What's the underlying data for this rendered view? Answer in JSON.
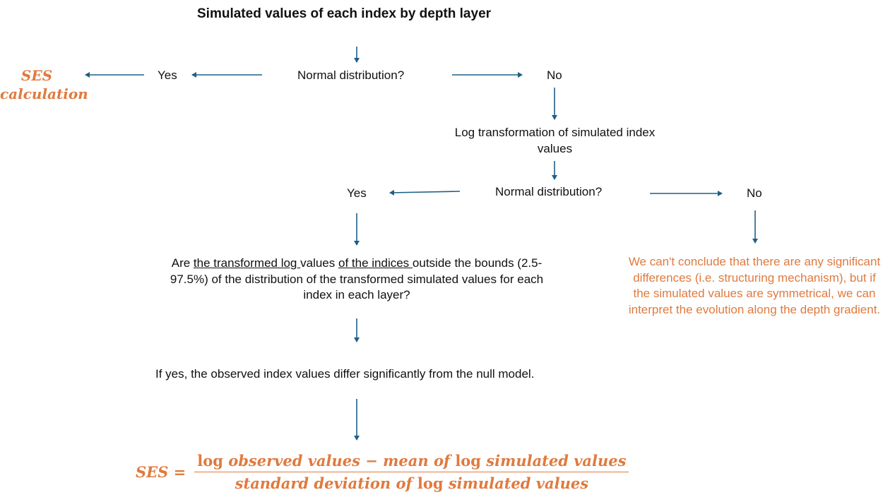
{
  "title": "Simulated values of each index by depth layer",
  "ses_label_line1": "SES",
  "ses_label_line2": "calculation",
  "yes_1": "Yes",
  "normal_dist_1": "Normal distribution?",
  "no_1": "No",
  "log_transform": {
    "line1": "Log transformation of simulated index",
    "line2": "values"
  },
  "yes_2": "Yes",
  "normal_dist_2": "Normal distribution?",
  "no_2": "No",
  "question": {
    "p1": "Are ",
    "u1": "the transformed log ",
    "p2": "values ",
    "u2": "of the indices ",
    "p3": "outside the bounds (2.5-",
    "line2": "97.5%) of the distribution of the transformed simulated values for each",
    "line3": "index in each layer?"
  },
  "conclusion": "If yes, the observed index values differ significantly from the null model.",
  "no_conclusion": {
    "line1": "We can't conclude that there are any significant",
    "line2": "differences (i.e. structuring mechanism), but if",
    "line3": "the simulated values are symmetrical, we can",
    "line4": "interpret the evolution along the depth gradient."
  },
  "formula": {
    "lhs": "SES =",
    "num_log1": "log",
    "num_a": "observed values − mean of",
    "num_log2": "log",
    "num_b": "simulated values",
    "den_a": "standard deviation of",
    "den_log": "log",
    "den_b": "simulated values"
  },
  "colors": {
    "arrow": "#1f5f87",
    "accent": "#e07a3e",
    "text": "#111111"
  }
}
